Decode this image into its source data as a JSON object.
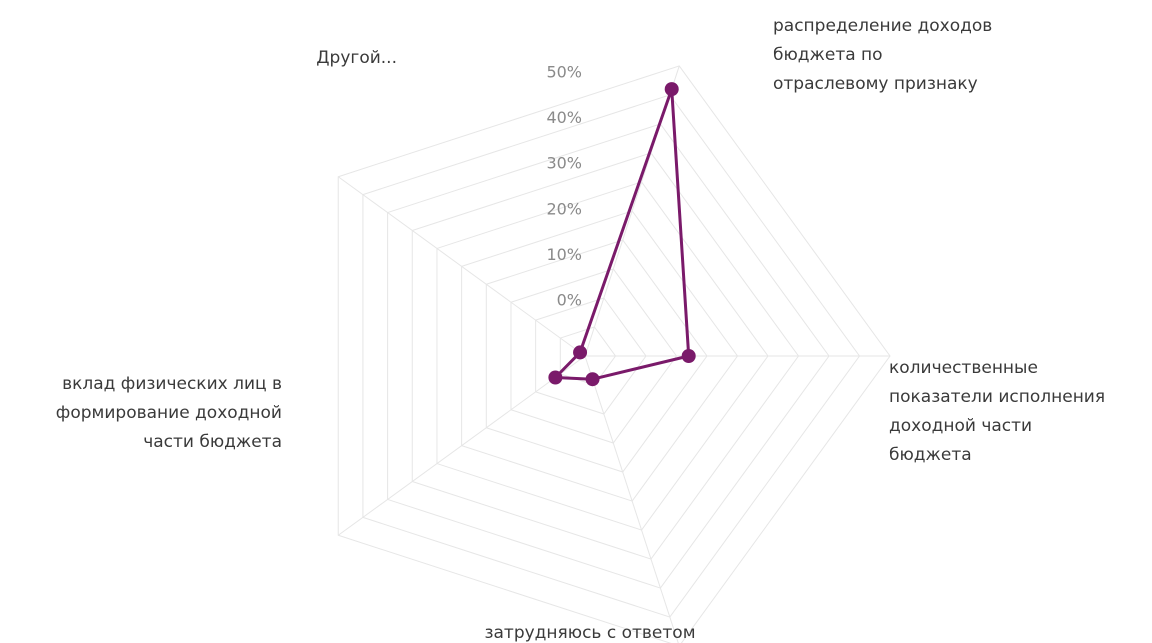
{
  "chart_data": {
    "type": "radar",
    "title": "",
    "axes": [
      {
        "label": "распределение доходов бюджета по отраслевому признаку",
        "lines": [
          "распределение доходов",
          "бюджета по",
          "отраслевому признаку"
        ]
      },
      {
        "label": "количественные показатели исполнения доходной части бюджета",
        "lines": [
          "количественные",
          "показатели исполнения",
          "доходной части",
          "бюджета"
        ]
      },
      {
        "label": "затрудняюсь с ответом",
        "lines": [
          "затрудняюсь с ответом"
        ]
      },
      {
        "label": "вклад физических лиц в формирование доходной части бюджета",
        "lines": [
          "вклад физических лиц в",
          "формирование доходной",
          "части бюджета"
        ]
      },
      {
        "label": "Другой...",
        "lines": [
          "Другой..."
        ]
      }
    ],
    "ticks": [
      "0%",
      "10%",
      "20%",
      "30%",
      "40%",
      "50%"
    ],
    "range": [
      0,
      50
    ],
    "grid": true,
    "series": [
      {
        "name": "",
        "color": "#7a1a6a",
        "values": [
          46,
          17,
          4,
          6,
          1
        ]
      }
    ]
  }
}
